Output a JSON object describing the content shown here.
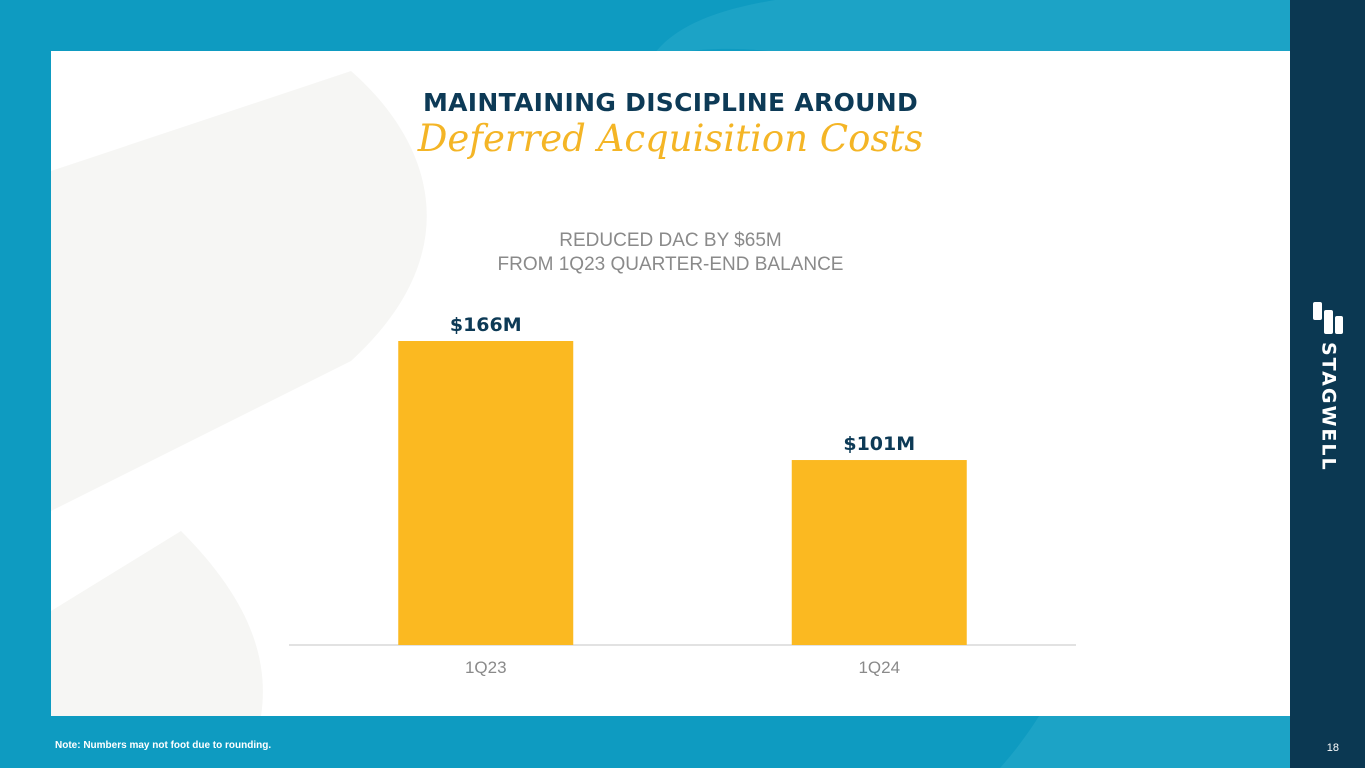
{
  "slide": {
    "title_line1": "MAINTAINING DISCIPLINE AROUND",
    "title_line2": "Deferred Acquisition Costs",
    "chart_subtitle_line1": "REDUCED DAC BY $65M",
    "chart_subtitle_line2": "FROM 1Q23 QUARTER-END BALANCE",
    "footnote": "Note: Numbers may not foot due to rounding.",
    "page_number": "18",
    "brand": "STAGWELL"
  },
  "colors": {
    "background": "#0e9bc1",
    "sidebar": "#0b3852",
    "title_navy": "#0d3a56",
    "accent_gold": "#f4b526",
    "bar": "#fbb921",
    "subtitle_gray": "#8a8a8a"
  },
  "chart_data": {
    "type": "bar",
    "categories": [
      "1Q23",
      "1Q24"
    ],
    "values": [
      166,
      101
    ],
    "data_labels": [
      "$166M",
      "$101M"
    ],
    "title": "",
    "xlabel": "",
    "ylabel": "",
    "ylim": [
      0,
      166
    ],
    "grid": false,
    "legend": "none"
  }
}
